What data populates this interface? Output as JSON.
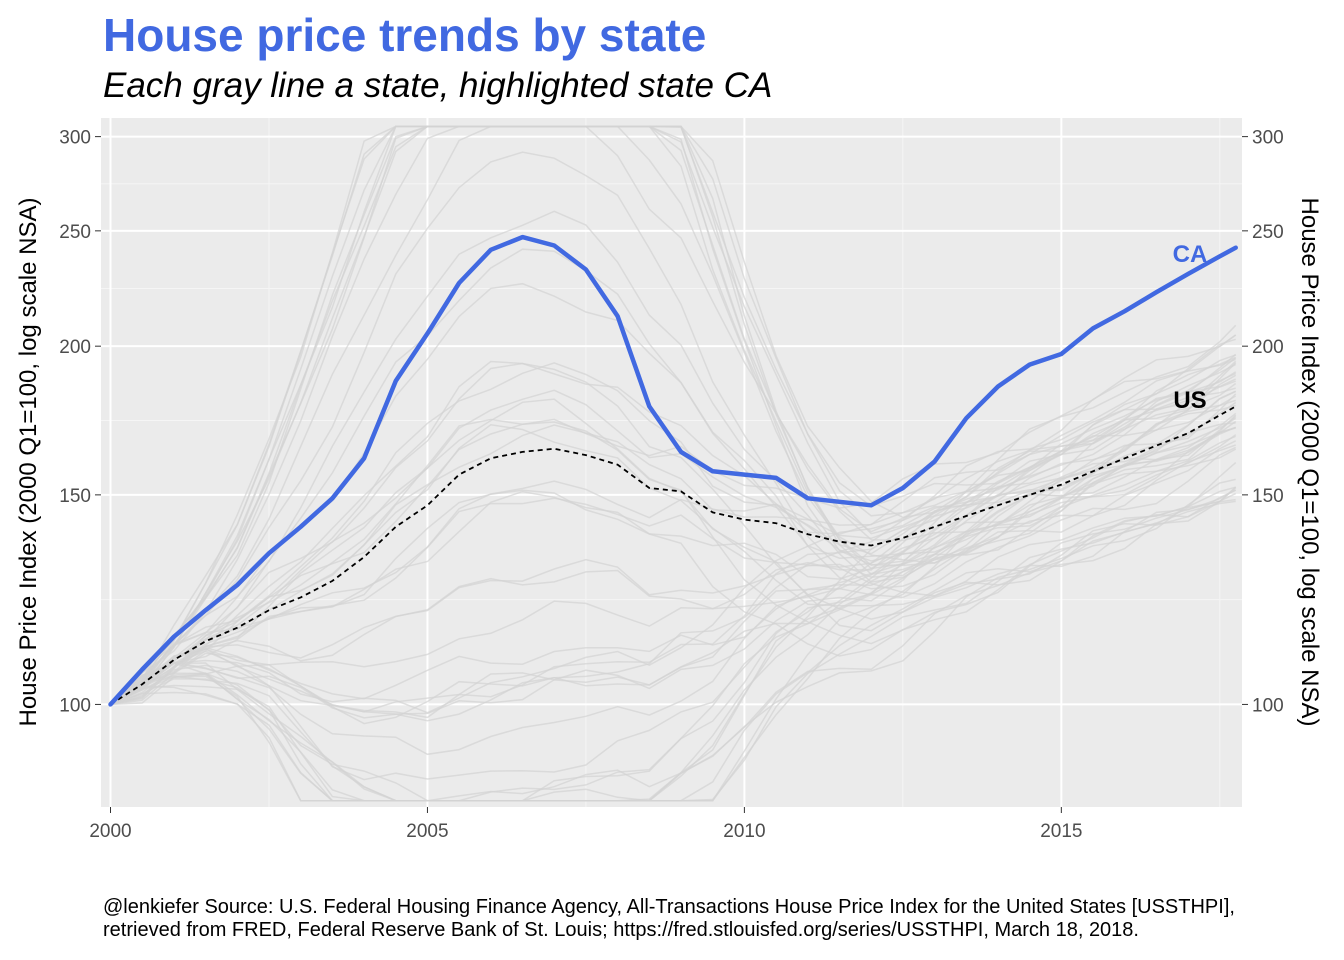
{
  "chart_data": {
    "type": "line",
    "title": "House price trends by state",
    "subtitle": "Each gray line a state, highlighted state CA",
    "ylabel": "House Price Index (2000 Q1=100, log scale NSA)",
    "ylabel_right": "House Price Index (2000 Q1=100, log scale NSA)",
    "xlabel": "",
    "y_scale": "log",
    "xlim": [
      1999.85,
      2017.85
    ],
    "ylim": [
      82,
      311
    ],
    "x_ticks": [
      2000,
      2005,
      2010,
      2015
    ],
    "x_tick_labels": [
      "2000",
      "2005",
      "2010",
      "2015"
    ],
    "y_ticks": [
      100,
      150,
      200,
      250,
      300
    ],
    "y_tick_labels": [
      "100",
      "150",
      "200",
      "250",
      "300"
    ],
    "grid": true,
    "legend": "none",
    "colors": {
      "highlight": "#4169E1",
      "us": "#000000",
      "states": "#D3D3D3",
      "panel": "#EBEBEB",
      "grid": "#FFFFFF"
    },
    "highlight_series": {
      "name": "CA",
      "label": "CA",
      "x": [
        2000.0,
        2000.5,
        2001.0,
        2001.5,
        2002.0,
        2002.5,
        2003.0,
        2003.5,
        2004.0,
        2004.5,
        2005.0,
        2005.5,
        2006.0,
        2006.5,
        2007.0,
        2007.5,
        2008.0,
        2008.5,
        2009.0,
        2009.5,
        2010.0,
        2010.5,
        2011.0,
        2011.5,
        2012.0,
        2012.5,
        2013.0,
        2013.5,
        2014.0,
        2014.5,
        2015.0,
        2015.5,
        2016.0,
        2016.5,
        2017.0,
        2017.5,
        2017.75
      ],
      "y": [
        100,
        107,
        114,
        120,
        126,
        134,
        141,
        149,
        161,
        187,
        205,
        226,
        241,
        247,
        243,
        232,
        212,
        178,
        163,
        157,
        156,
        155,
        149,
        148,
        147,
        152,
        160,
        174,
        185,
        193,
        197,
        207,
        214,
        222,
        230,
        238,
        242
      ]
    },
    "us_series": {
      "name": "US",
      "label": "US",
      "x": [
        2000.0,
        2000.5,
        2001.0,
        2001.5,
        2002.0,
        2002.5,
        2003.0,
        2003.5,
        2004.0,
        2004.5,
        2005.0,
        2005.5,
        2006.0,
        2006.5,
        2007.0,
        2007.5,
        2008.0,
        2008.5,
        2009.0,
        2009.5,
        2010.0,
        2010.5,
        2011.0,
        2011.5,
        2012.0,
        2012.5,
        2013.0,
        2013.5,
        2014.0,
        2014.5,
        2015.0,
        2015.5,
        2016.0,
        2016.5,
        2017.0,
        2017.5,
        2017.75
      ],
      "y": [
        100,
        104,
        109,
        113,
        116,
        120,
        123,
        127,
        133,
        141,
        147,
        156,
        161,
        163,
        164,
        162,
        159,
        152,
        151,
        145,
        143,
        142,
        139,
        137,
        136,
        138,
        141,
        144,
        147,
        150,
        153,
        157,
        161,
        165,
        169,
        175,
        178
      ]
    },
    "state_series_count": 51
  },
  "caption": {
    "line1": "@lenkiefer Source: U.S. Federal Housing Finance Agency, All-Transactions House Price Index for the United States [USSTHPI],",
    "line2": "retrieved from FRED, Federal Reserve Bank of St. Louis; https://fred.stlouisfed.org/series/USSTHPI, March 18, 2018."
  }
}
